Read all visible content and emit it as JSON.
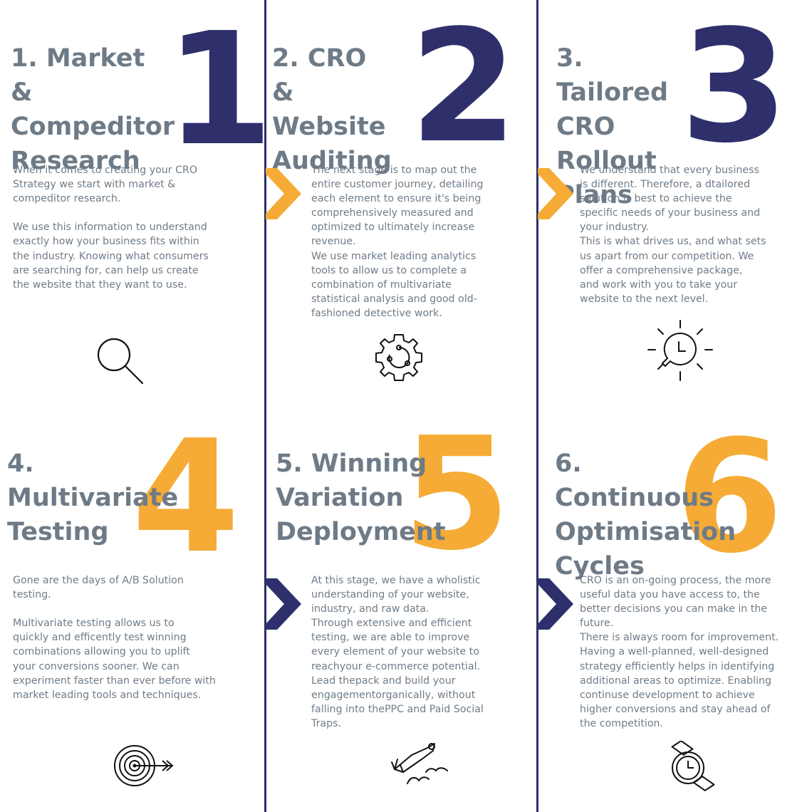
{
  "colors": {
    "navy": "#2e2f6b",
    "orange": "#f5ab35",
    "slate": "#6e7b87"
  },
  "steps": [
    {
      "number": "1",
      "title": "1. Market &\nCompeditor\nResearch",
      "body": "When it comes to creating your CRO\nStrategy we start with market &\ncompeditor research.\n\nWe use this information to understand\nexactly how your business fits within\nthe industry. Knowing what consumers\nare searching for, can help us create\nthe website that they want to use.",
      "icon": "magnifier-icon"
    },
    {
      "number": "2",
      "title": "2. CRO &\nWebsite\nAuditing",
      "body": "The next stage is to map out the\nentire customer journey, detailing\neach element to ensure it's being\ncomprehensively measured and\noptimized to ultimately increase\nrevenue.\nWe use market leading analytics\ntools to allow us to complete a\ncombination of multivariate\nstatistical analysis and good old-\nfashioned detective work.",
      "icon": "gear-icon"
    },
    {
      "number": "3",
      "title": "3. Tailored\nCRO Rollout\nPlans",
      "body": "We understand that every business\nis different. Therefore, a dtailored\nsolution is best to achieve the\nspecific needs of your business and\nyour industry.\nThis is what drives us, and what sets\nus apart from our competition. We\noffer a comprehensive package,\nand work with you to take your\nwebsite to the next level.",
      "icon": "lightbulb-clock-icon"
    },
    {
      "number": "4",
      "title": "4. Multivariate\nTesting",
      "body": "Gone are the days of A/B Solution\ntesting.\n\nMultivariate testing allows us to\nquickly and efficently test winning\ncombinations allowing you to uplift\nyour conversions sooner. We can\nexperiment faster than ever before with\nmarket leading tools and techniques.",
      "icon": "target-icon"
    },
    {
      "number": "5",
      "title": "5. Winning\nVariation\nDeployment",
      "body": "At this stage, we have a wholistic\nunderstanding of your website,\nindustry, and raw data.\nThrough extensive and efficient\ntesting, we are able to improve\nevery element of your website to\nreachyour e-commerce potential.\nLead thepack and build your\nengagementorganically, without\nfalling into thePPC and Paid Social\nTraps.",
      "icon": "flying-hero-icon"
    },
    {
      "number": "6",
      "title": "6. Continuous\nOptimisation\nCycles",
      "body": "CRO is an on-going process, the more\nuseful data you have access to, the\nbetter decisions you can make in the\nfuture.\nThere is always room for improvement.\nHaving a well-planned, well-designed\nstrategy efficiently helps in identifying\nadditional areas to optimize. Enabling\ncontinuse development to achieve\nhigher conversions and stay ahead of\nthe competition.",
      "icon": "watch-icon"
    }
  ]
}
